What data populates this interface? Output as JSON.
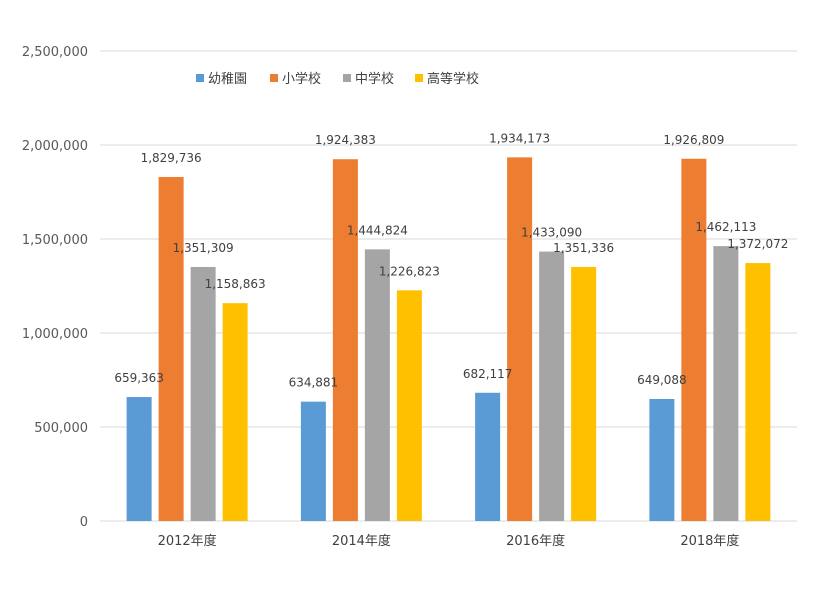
{
  "chart_data": {
    "type": "bar",
    "categories": [
      "2012年度",
      "2014年度",
      "2016年度",
      "2018年度"
    ],
    "series": [
      {
        "name": "幼稚園",
        "color": "#5B9BD5",
        "values": [
          659363,
          634881,
          682117,
          649088
        ],
        "labels": [
          "659,363",
          "634,881",
          "682,117",
          "649,088"
        ]
      },
      {
        "name": "小学校",
        "color": "#ED7D31",
        "values": [
          1829736,
          1924383,
          1934173,
          1926809
        ],
        "labels": [
          "1,829,736",
          "1,924,383",
          "1,934,173",
          "1,926,809"
        ]
      },
      {
        "name": "中学校",
        "color": "#A5A5A5",
        "values": [
          1351309,
          1444824,
          1433090,
          1462113
        ],
        "labels": [
          "1,351,309",
          "1,444,824",
          "1,433,090",
          "1,462,113"
        ]
      },
      {
        "name": "高等学校",
        "color": "#FFC000",
        "values": [
          1158863,
          1226823,
          1351336,
          1372072
        ],
        "labels": [
          "1,158,863",
          "1,226,823",
          "1,351,336",
          "1,372,072"
        ]
      }
    ],
    "yticks": [
      0,
      500000,
      1000000,
      1500000,
      2000000,
      2500000
    ],
    "ytick_labels": [
      "0",
      "500,000",
      "1,000,000",
      "1,500,000",
      "2,000,000",
      "2,500,000"
    ],
    "ylim": [
      0,
      2500000
    ],
    "grid": true,
    "legend_position": "top-left",
    "title": "",
    "xlabel": "",
    "ylabel": ""
  }
}
